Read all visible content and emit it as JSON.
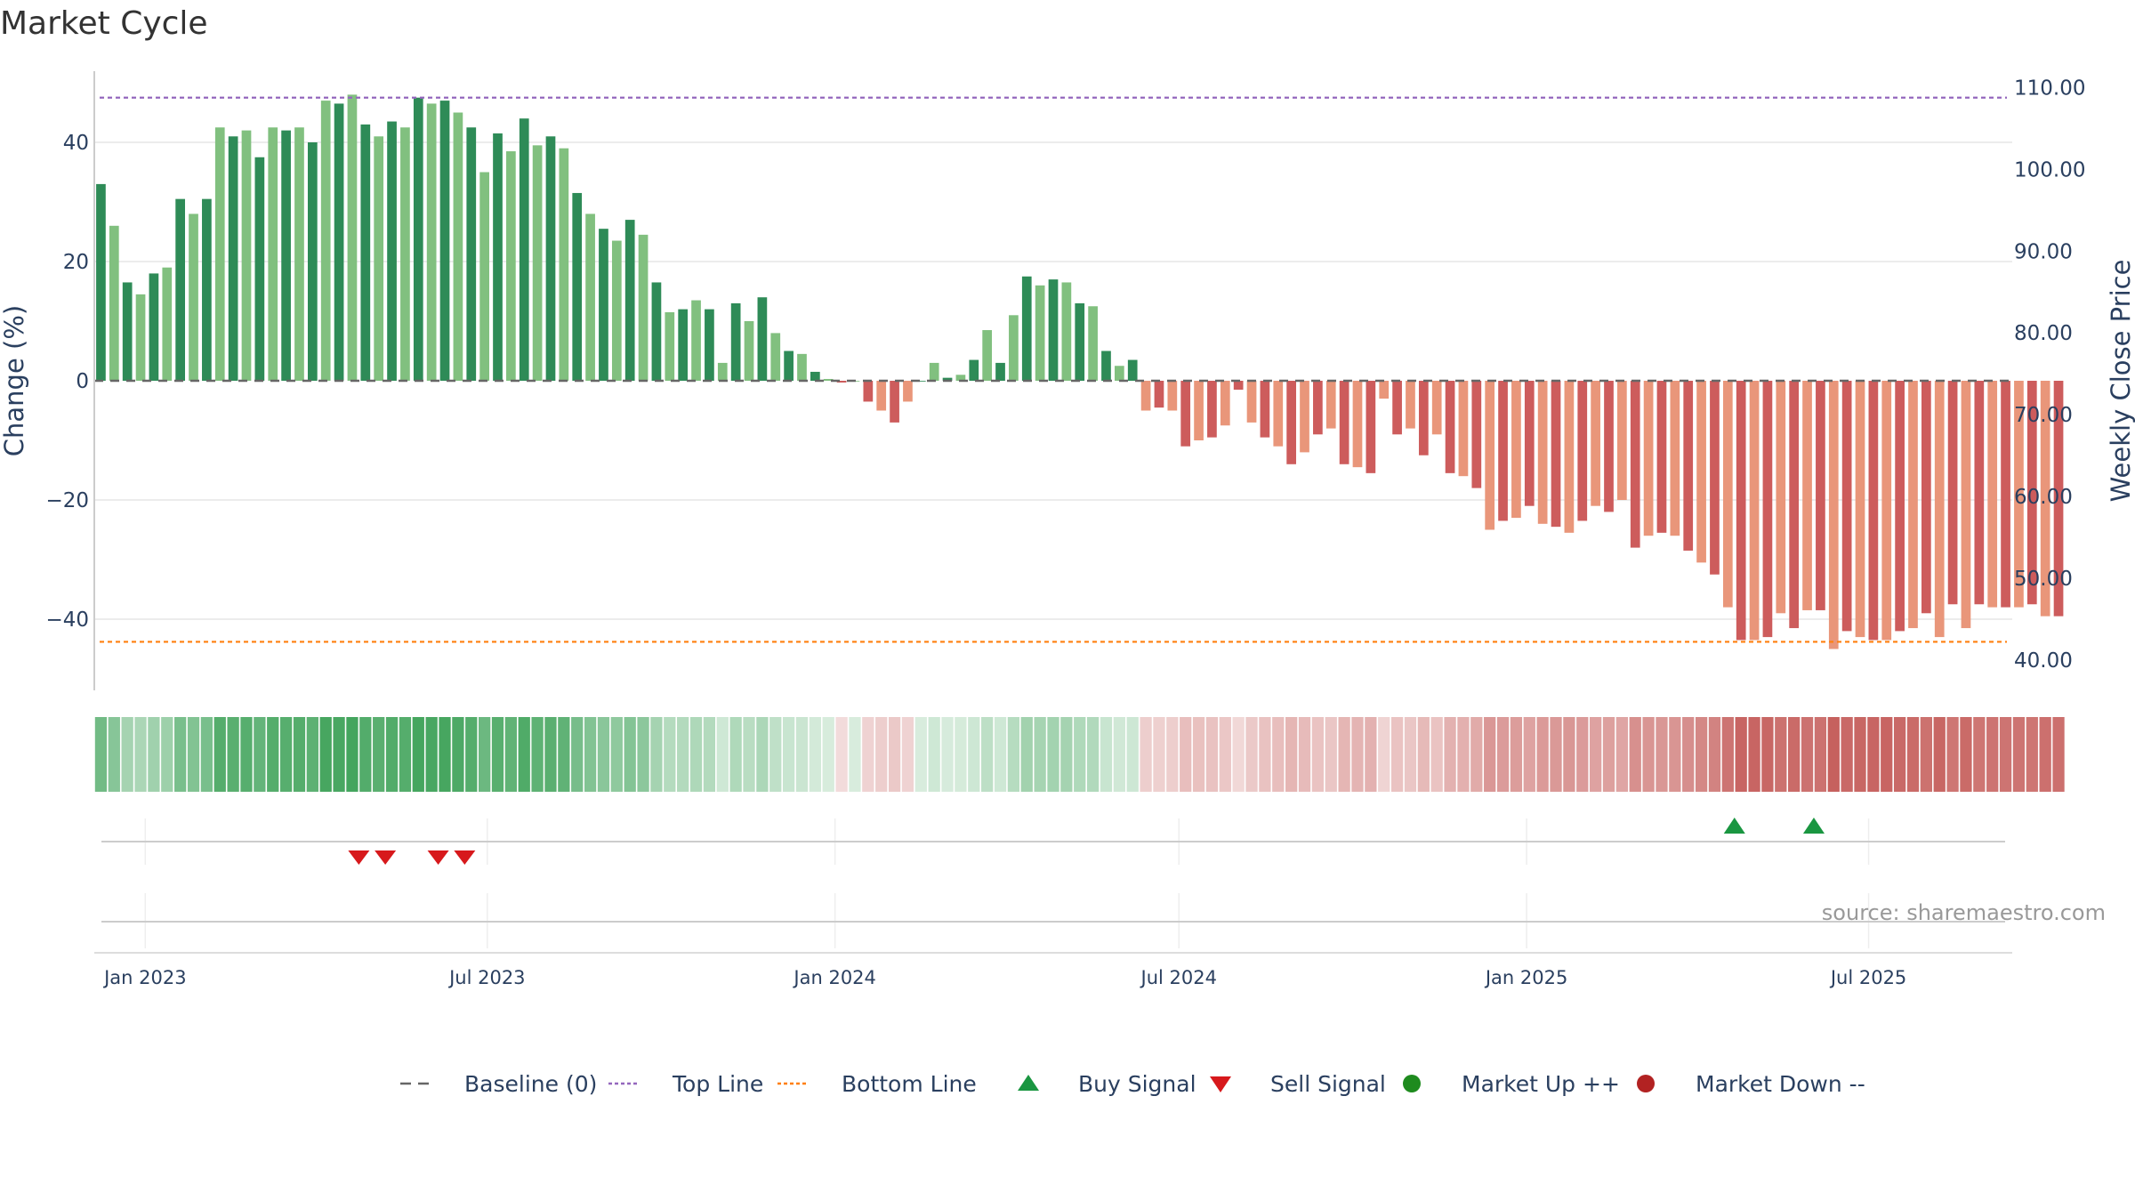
{
  "chart_data": {
    "type": "bar",
    "title": "Market Cycle",
    "ylabel_left": "Change (%)",
    "ylabel_right": "Weekly Close Price",
    "ylim_left": [
      -52,
      52
    ],
    "ylim_right": [
      38,
      112
    ],
    "yticks_left": [
      {
        "value": 40,
        "label": "40"
      },
      {
        "value": 20,
        "label": "20"
      },
      {
        "value": 0,
        "label": "0"
      },
      {
        "value": -20,
        "label": "−20"
      },
      {
        "value": -40,
        "label": "−40"
      }
    ],
    "yticks_right": [
      {
        "value": 110,
        "label": "110.00"
      },
      {
        "value": 100,
        "label": "100.00"
      },
      {
        "value": 90,
        "label": "90.00"
      },
      {
        "value": 80,
        "label": "80.00"
      },
      {
        "value": 70,
        "label": "70.00"
      },
      {
        "value": 60,
        "label": "60.00"
      },
      {
        "value": 50,
        "label": "50.00"
      },
      {
        "value": 40,
        "label": "40.00"
      }
    ],
    "x_range": [
      "2022-12-05",
      "2025-09-15"
    ],
    "x_ticks": [
      {
        "date": "2023-01-01",
        "label": "Jan 2023"
      },
      {
        "date": "2023-07-01",
        "label": "Jul 2023"
      },
      {
        "date": "2024-01-01",
        "label": "Jan 2024"
      },
      {
        "date": "2024-07-01",
        "label": "Jul 2024"
      },
      {
        "date": "2025-01-01",
        "label": "Jan 2025"
      },
      {
        "date": "2025-07-01",
        "label": "Jul 2025"
      }
    ],
    "first_week": "2022-12-05",
    "top_line": 47.5,
    "bottom_line": -43.8,
    "baseline": 0,
    "grid": true,
    "values": [
      33,
      26,
      16.5,
      14.5,
      18,
      19,
      30.5,
      28,
      30.5,
      42.5,
      41,
      42,
      37.5,
      42.5,
      42,
      42.5,
      40,
      47,
      46.5,
      48,
      43,
      41,
      43.5,
      42.5,
      47.5,
      46.5,
      47,
      45,
      42.5,
      35,
      41.5,
      38.5,
      44,
      39.5,
      41,
      39,
      31.5,
      28,
      25.5,
      23.5,
      27,
      24.5,
      16.5,
      11.5,
      12,
      13.5,
      12,
      3,
      13,
      10,
      14,
      8,
      5,
      4.5,
      1.5,
      0.3,
      -0.3,
      0,
      -3.5,
      -5,
      -7,
      -3.5,
      0,
      3,
      0.5,
      1,
      3.5,
      8.5,
      3,
      11,
      17.5,
      16,
      17,
      16.5,
      13,
      12.5,
      5,
      2.5,
      3.5,
      -5,
      -4.5,
      -5,
      -11,
      -10,
      -9.5,
      -7.5,
      -1.5,
      -7,
      -9.5,
      -11,
      -14,
      -12,
      -9,
      -8,
      -14,
      -14.5,
      -15.5,
      -3,
      -9,
      -8,
      -12.5,
      -9,
      -15.5,
      -16,
      -18,
      -25,
      -23.5,
      -23,
      -21,
      -24,
      -24.5,
      -25.5,
      -23.5,
      -21,
      -22,
      -20,
      -28,
      -26,
      -25.5,
      -26,
      -28.5,
      -30.5,
      -32.5,
      -38,
      -43.5,
      -43.5,
      -43,
      -39,
      -41.5,
      -38.5,
      -38.5,
      -45,
      -42,
      -43,
      -43.5,
      -43.5,
      -42,
      -41.5,
      -39,
      -43,
      -37.5,
      -41.5,
      -37.5,
      -38,
      -38,
      -38,
      -37.5,
      -39.5,
      -39.5
    ],
    "buy_signals": [
      "2025-04-21",
      "2025-06-02"
    ],
    "sell_signals": [
      "2023-04-24",
      "2023-05-08",
      "2023-06-05",
      "2023-06-19"
    ],
    "annotation": "source: sharemaestro.com",
    "legend_position": "bottom-center",
    "legend": [
      {
        "key": "baseline",
        "label": "Baseline (0)"
      },
      {
        "key": "top",
        "label": "Top Line"
      },
      {
        "key": "bottom",
        "label": "Bottom Line"
      },
      {
        "key": "buy",
        "label": "Buy Signal"
      },
      {
        "key": "sell",
        "label": "Sell Signal"
      },
      {
        "key": "up",
        "label": "Market Up ++"
      },
      {
        "key": "down",
        "label": "Market Down --"
      }
    ],
    "colors": {
      "green_dark": "#2e8b57",
      "green_light": "#81c07f",
      "red_dark": "#cd5c5c",
      "red_light": "#e9967a",
      "baseline": "#666666",
      "top_line": "#9467bd",
      "bottom_line": "#ff7f0e",
      "buy": "#1a9641",
      "sell": "#d7191c",
      "market_up": "#1e8b1e",
      "market_down": "#b22222",
      "heat_green": "#3aa055",
      "heat_red": "#c0504d",
      "grid": "#e6e6e6",
      "text": "#2a3f5f",
      "annotation": "#999999"
    }
  }
}
